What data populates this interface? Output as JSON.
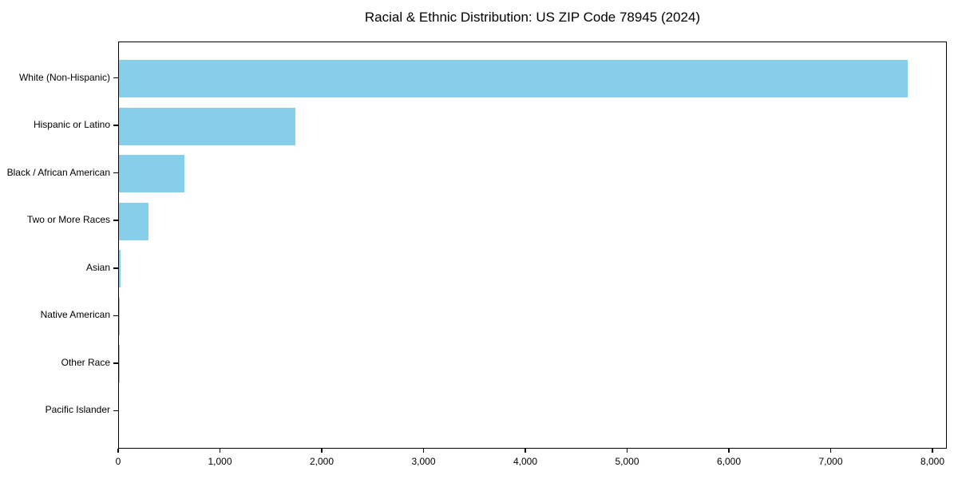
{
  "chart_data": {
    "type": "bar",
    "orientation": "horizontal",
    "title": "Racial & Ethnic Distribution: US ZIP Code 78945 (2024)",
    "categories": [
      "White (Non-Hispanic)",
      "Hispanic or Latino",
      "Black / African American",
      "Two or More Races",
      "Asian",
      "Native American",
      "Other Race",
      "Pacific Islander"
    ],
    "values": [
      7750,
      1730,
      640,
      290,
      15,
      8,
      5,
      0
    ],
    "xlim": [
      0,
      8140
    ],
    "x_ticks": [
      0,
      1000,
      2000,
      3000,
      4000,
      5000,
      6000,
      7000,
      8000
    ],
    "x_tick_labels": [
      "0",
      "1,000",
      "2,000",
      "3,000",
      "4,000",
      "5,000",
      "6,000",
      "7,000",
      "8,000"
    ],
    "xlabel": "",
    "ylabel": "",
    "bar_color": "#87CEEB",
    "axis_color": "#000000",
    "background_color": "#FFFFFF",
    "grid": false,
    "legend": null,
    "sort_order": "descending"
  }
}
